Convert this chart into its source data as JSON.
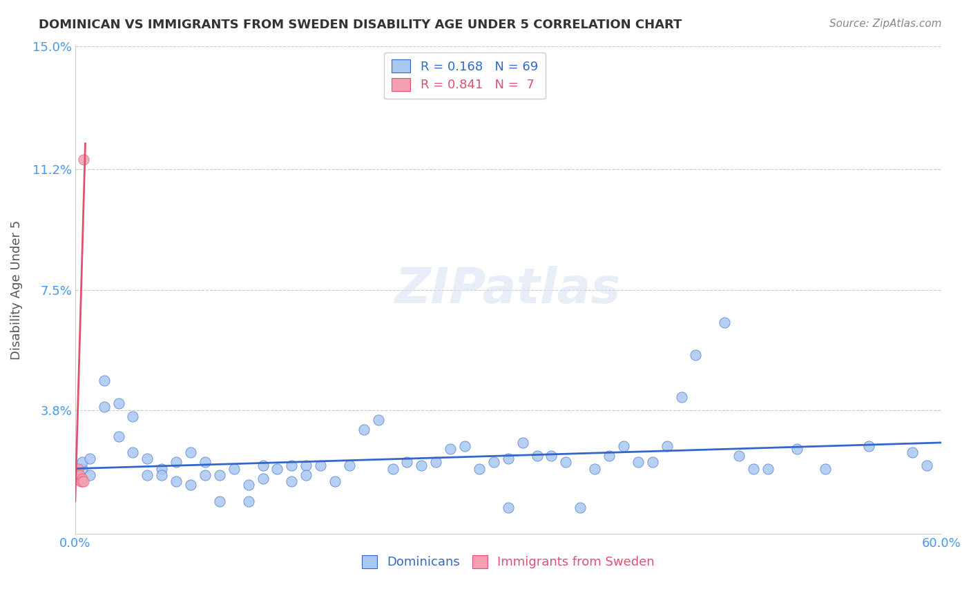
{
  "title": "DOMINICAN VS IMMIGRANTS FROM SWEDEN DISABILITY AGE UNDER 5 CORRELATION CHART",
  "source": "Source: ZipAtlas.com",
  "ylabel": "Disability Age Under 5",
  "xlim": [
    0.0,
    0.6
  ],
  "ylim": [
    0.0,
    0.15
  ],
  "xticks": [
    0.0,
    0.1,
    0.2,
    0.3,
    0.4,
    0.5,
    0.6
  ],
  "xticklabels": [
    "0.0%",
    "",
    "",
    "",
    "",
    "",
    "60.0%"
  ],
  "yticks": [
    0.0,
    0.038,
    0.075,
    0.112,
    0.15
  ],
  "yticklabels": [
    "",
    "3.8%",
    "7.5%",
    "11.2%",
    "15.0%"
  ],
  "grid_color": "#cccccc",
  "background_color": "#ffffff",
  "watermark_text": "ZIPatlas",
  "legend_R1": "0.168",
  "legend_N1": "69",
  "legend_R2": "0.841",
  "legend_N2": "7",
  "blue_color": "#a8c8f0",
  "blue_line_color": "#3366cc",
  "pink_color": "#f4a0b0",
  "pink_line_color": "#e05070",
  "title_color": "#333333",
  "axis_label_color": "#555555",
  "tick_color": "#4499ee",
  "dominicans_label": "Dominicans",
  "sweden_label": "Immigrants from Sweden",
  "blue_scatter_x": [
    0.02,
    0.03,
    0.04,
    0.05,
    0.05,
    0.06,
    0.06,
    0.07,
    0.07,
    0.08,
    0.08,
    0.09,
    0.09,
    0.1,
    0.1,
    0.11,
    0.12,
    0.12,
    0.13,
    0.13,
    0.14,
    0.15,
    0.15,
    0.16,
    0.16,
    0.17,
    0.18,
    0.19,
    0.2,
    0.21,
    0.22,
    0.23,
    0.24,
    0.25,
    0.26,
    0.27,
    0.28,
    0.29,
    0.3,
    0.3,
    0.31,
    0.32,
    0.33,
    0.34,
    0.35,
    0.36,
    0.37,
    0.38,
    0.39,
    0.4,
    0.41,
    0.42,
    0.43,
    0.45,
    0.46,
    0.47,
    0.48,
    0.5,
    0.52,
    0.55,
    0.58,
    0.59,
    0.005,
    0.005,
    0.01,
    0.01,
    0.02,
    0.03,
    0.04
  ],
  "blue_scatter_y": [
    0.047,
    0.03,
    0.025,
    0.023,
    0.018,
    0.02,
    0.018,
    0.022,
    0.016,
    0.025,
    0.015,
    0.022,
    0.018,
    0.018,
    0.01,
    0.02,
    0.015,
    0.01,
    0.021,
    0.017,
    0.02,
    0.021,
    0.016,
    0.021,
    0.018,
    0.021,
    0.016,
    0.021,
    0.032,
    0.035,
    0.02,
    0.022,
    0.021,
    0.022,
    0.026,
    0.027,
    0.02,
    0.022,
    0.023,
    0.008,
    0.028,
    0.024,
    0.024,
    0.022,
    0.008,
    0.02,
    0.024,
    0.027,
    0.022,
    0.022,
    0.027,
    0.042,
    0.055,
    0.065,
    0.024,
    0.02,
    0.02,
    0.026,
    0.02,
    0.027,
    0.025,
    0.021,
    0.02,
    0.022,
    0.023,
    0.018,
    0.039,
    0.04,
    0.036
  ],
  "pink_scatter_x": [
    0.002,
    0.003,
    0.004,
    0.005,
    0.005,
    0.006,
    0.006
  ],
  "pink_scatter_y": [
    0.02,
    0.018,
    0.016,
    0.017,
    0.016,
    0.016,
    0.115
  ],
  "blue_trend_x": [
    0.0,
    0.6
  ],
  "blue_trend_y": [
    0.02,
    0.028
  ],
  "pink_trend_x": [
    0.0,
    0.007
  ],
  "pink_trend_y": [
    0.01,
    0.12
  ]
}
